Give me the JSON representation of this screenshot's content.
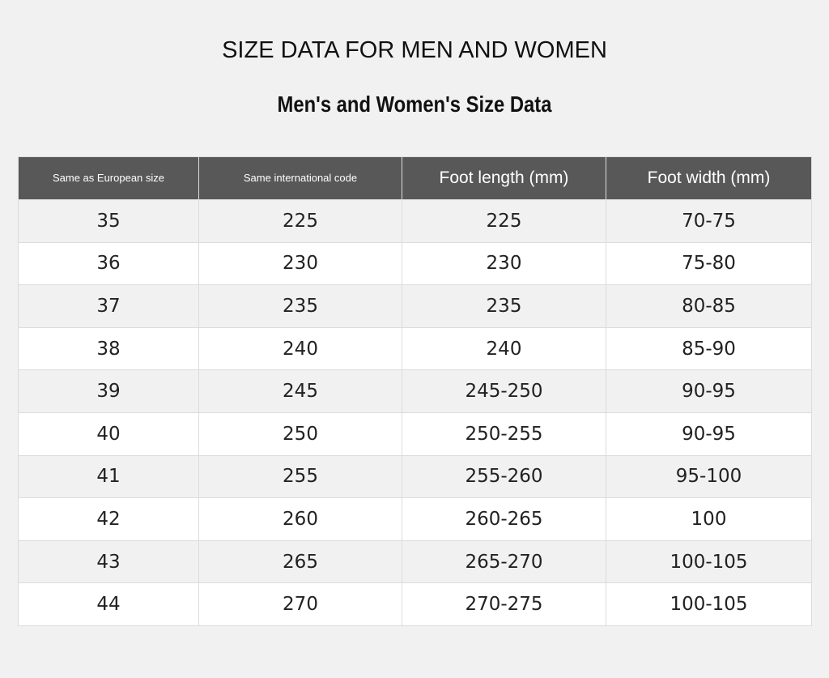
{
  "header": {
    "title": "SIZE DATA FOR MEN AND WOMEN",
    "subtitle": "Men's and Women's Size Data"
  },
  "table": {
    "columns": [
      "Same as European size",
      "Same international code",
      "Foot length (mm)",
      "Foot width (mm)"
    ],
    "rows": [
      [
        "35",
        "225",
        "225",
        "70-75"
      ],
      [
        "36",
        "230",
        "230",
        "75-80"
      ],
      [
        "37",
        "235",
        "235",
        "80-85"
      ],
      [
        "38",
        "240",
        "240",
        "85-90"
      ],
      [
        "39",
        "245",
        "245-250",
        "90-95"
      ],
      [
        "40",
        "250",
        "250-255",
        "90-95"
      ],
      [
        "41",
        "255",
        "255-260",
        "95-100"
      ],
      [
        "42",
        "260",
        "260-265",
        "100"
      ],
      [
        "43",
        "265",
        "265-270",
        "100-105"
      ],
      [
        "44",
        "270",
        "270-275",
        "100-105"
      ]
    ]
  }
}
